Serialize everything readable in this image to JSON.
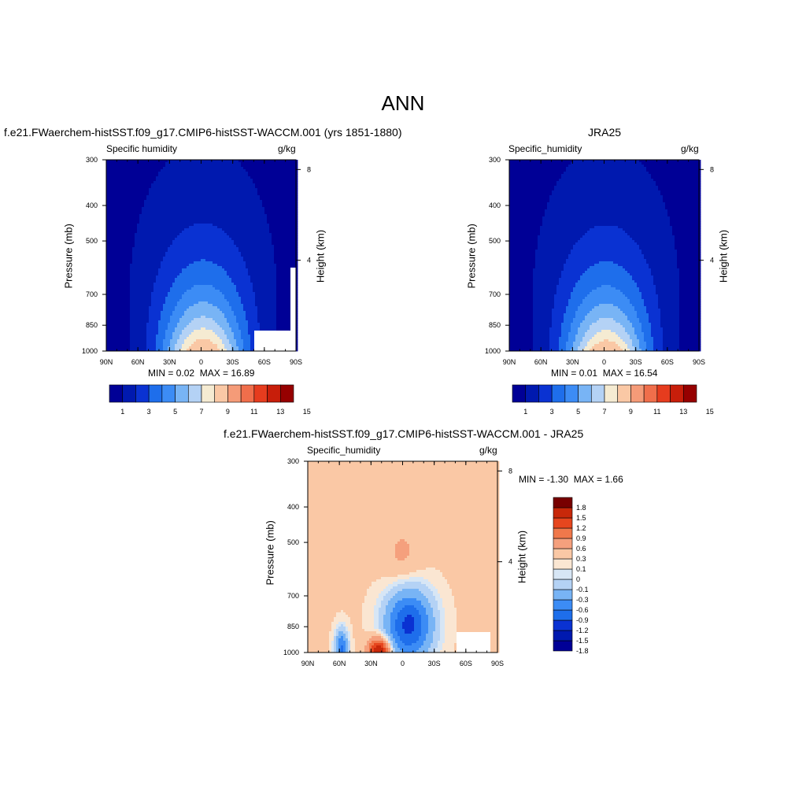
{
  "page_title": "ANN",
  "colors": {
    "scale14": [
      "#000096",
      "#0019af",
      "#0a32d2",
      "#1e6eeb",
      "#3c8cf5",
      "#78b4f5",
      "#b4d2f5",
      "#f5ebd2",
      "#fac8a5",
      "#f59b78",
      "#f06e4b",
      "#e63c1e",
      "#c81e0a",
      "#960000"
    ],
    "diff14": [
      "#000096",
      "#0019af",
      "#0a32d2",
      "#1e6eeb",
      "#3c8cf5",
      "#78b4f5",
      "#b4d2f5",
      "#d7e6f5",
      "#fae6d2",
      "#fac8a5",
      "#f5a07d",
      "#f0784b",
      "#e6461e",
      "#c8280a",
      "#780000"
    ]
  },
  "chart_data": [
    {
      "type": "heatmap",
      "title": "f.e21.FWaerchem-histSST.f09_g17.CMIP6-histSST-WACCM.001 (yrs 1851-1880)",
      "left_label": "Specific humidity",
      "units": "g/kg",
      "ylabel": "Pressure (mb)",
      "ylabel_right": "Height (km)",
      "x_ticks": [
        "90N",
        "60N",
        "30N",
        "0",
        "30S",
        "60S",
        "90S"
      ],
      "y_ticks": [
        300,
        400,
        500,
        700,
        850,
        1000
      ],
      "right_ticks": [
        8,
        4
      ],
      "min_label": "MIN =",
      "min": "0.02",
      "max_label": "MAX =",
      "max": "16.89",
      "levels": [
        1,
        3,
        5,
        7,
        9,
        11,
        13,
        15
      ],
      "colorbar_labels": [
        "1",
        "3",
        "5",
        "7",
        "9",
        "11",
        "13",
        "15"
      ],
      "field": {
        "peak": 16.89,
        "peak_lat": -2,
        "surface_halfwidth_deg": 40,
        "scale_height_levels": 2.2,
        "missing_region": "60S-90S below 900mb"
      }
    },
    {
      "type": "heatmap",
      "title": "JRA25",
      "left_label": "Specific_humidity",
      "units": "g/kg",
      "ylabel": "Pressure (mb)",
      "ylabel_right": "Height (km)",
      "x_ticks": [
        "90N",
        "60N",
        "30N",
        "0",
        "30S",
        "60S",
        "90S"
      ],
      "y_ticks": [
        300,
        400,
        500,
        700,
        850,
        1000
      ],
      "right_ticks": [
        8,
        4
      ],
      "min_label": "MIN =",
      "min": "0.01",
      "max_label": "MAX =",
      "max": "16.54",
      "levels": [
        1,
        3,
        5,
        7,
        9,
        11,
        13,
        15
      ],
      "colorbar_labels": [
        "1",
        "3",
        "5",
        "7",
        "9",
        "11",
        "13",
        "15"
      ],
      "field": {
        "peak": 16.54,
        "peak_lat": -2,
        "surface_halfwidth_deg": 40,
        "scale_height_levels": 2.2
      }
    },
    {
      "type": "heatmap",
      "title": "f.e21.FWaerchem-histSST.f09_g17.CMIP6-histSST-WACCM.001 - JRA25",
      "left_label": "Specific_humidity",
      "units": "g/kg",
      "ylabel": "Pressure (mb)",
      "ylabel_right": "Height (km)",
      "x_ticks": [
        "90N",
        "60N",
        "30N",
        "0",
        "30S",
        "60S",
        "90S"
      ],
      "y_ticks": [
        300,
        400,
        500,
        700,
        850,
        1000
      ],
      "right_ticks": [
        8,
        4
      ],
      "min_label": "MIN =",
      "min": "-1.30",
      "max_label": "MAX =",
      "max": "1.66",
      "levels": [
        -1.8,
        -1.5,
        -1.2,
        -0.9,
        -0.6,
        -0.3,
        -0.1,
        0,
        0.1,
        0.3,
        0.6,
        0.9,
        1.2,
        1.5,
        1.8
      ],
      "colorbar_labels": [
        "1.8",
        "1.5",
        "1.2",
        "0.9",
        "0.6",
        "0.3",
        "0.1",
        "0",
        "-0.1",
        "-0.3",
        "-0.6",
        "-0.9",
        "-1.2",
        "-1.5",
        "-1.8"
      ],
      "features": [
        {
          "lat": -6,
          "p": 840,
          "value": -1.3,
          "sign": "negative"
        },
        {
          "lat": 22,
          "p": 990,
          "value": 1.66,
          "sign": "positive"
        },
        {
          "lat": 0,
          "p": 540,
          "value": 0.35,
          "sign": "positive"
        }
      ]
    }
  ]
}
